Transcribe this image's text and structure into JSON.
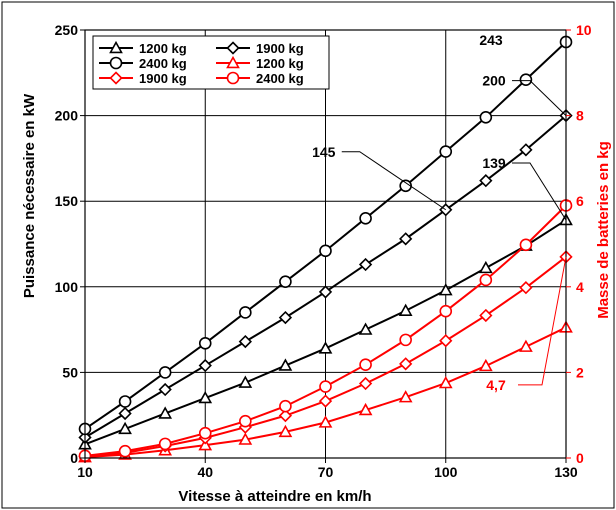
{
  "chart_data": {
    "type": "line",
    "title": "",
    "xlabel": "Vitesse à atteindre en km/h",
    "ylabel": "Puissance nécessaire en kW",
    "y2label": "Masse de batteries en kg",
    "xlim": [
      10,
      130
    ],
    "ylim": [
      0,
      250
    ],
    "y2lim": [
      0,
      10
    ],
    "x_ticks": [
      "10",
      "40",
      "70",
      "100",
      "130"
    ],
    "y_ticks": [
      "0",
      "50",
      "100",
      "150",
      "200",
      "250"
    ],
    "y2_ticks": [
      "0",
      "2",
      "4",
      "6",
      "8",
      "10"
    ],
    "grid": true,
    "legend_position": "top-left",
    "x": [
      10,
      20,
      30,
      40,
      50,
      60,
      70,
      80,
      90,
      100,
      110,
      120,
      130
    ],
    "series": [
      {
        "name": "1200 kg",
        "axis": "left",
        "color": "#000000",
        "marker": "triangle",
        "values": [
          8,
          17,
          26,
          35,
          44,
          54,
          64,
          75,
          86,
          98,
          111,
          124,
          139
        ]
      },
      {
        "name": "1900 kg",
        "axis": "left",
        "color": "#000000",
        "marker": "diamond",
        "values": [
          12,
          26,
          40,
          54,
          68,
          82,
          97,
          113,
          128,
          145,
          162,
          180,
          200
        ]
      },
      {
        "name": "2400 kg",
        "axis": "left",
        "color": "#000000",
        "marker": "circle",
        "values": [
          17,
          33,
          50,
          67,
          85,
          103,
          121,
          140,
          159,
          179,
          199,
          221,
          243
        ]
      },
      {
        "name": "1200 kg",
        "axis": "right",
        "color": "#ff0000",
        "marker": "triangle",
        "values": [
          0.02,
          0.08,
          0.18,
          0.3,
          0.43,
          0.61,
          0.83,
          1.12,
          1.42,
          1.75,
          2.15,
          2.6,
          3.05
        ]
      },
      {
        "name": "1900 kg",
        "axis": "right",
        "color": "#ff0000",
        "marker": "diamond",
        "values": [
          0.04,
          0.12,
          0.28,
          0.47,
          0.72,
          0.99,
          1.33,
          1.74,
          2.2,
          2.74,
          3.33,
          3.98,
          4.7
        ]
      },
      {
        "name": "2400 kg",
        "axis": "right",
        "color": "#ff0000",
        "marker": "circle",
        "values": [
          0.05,
          0.16,
          0.33,
          0.58,
          0.86,
          1.21,
          1.67,
          2.18,
          2.76,
          3.43,
          4.16,
          4.98,
          5.9
        ]
      }
    ],
    "annotations": [
      {
        "text": "243",
        "series": 2,
        "x": 130,
        "color": "#000000"
      },
      {
        "text": "200",
        "series": 1,
        "x": 130,
        "color": "#000000"
      },
      {
        "text": "145",
        "series": 1,
        "x": 100,
        "color": "#000000"
      },
      {
        "text": "139",
        "series": 0,
        "x": 130,
        "color": "#000000"
      },
      {
        "text": "4,7",
        "series": 4,
        "x": 130,
        "color": "#ff0000"
      }
    ]
  }
}
